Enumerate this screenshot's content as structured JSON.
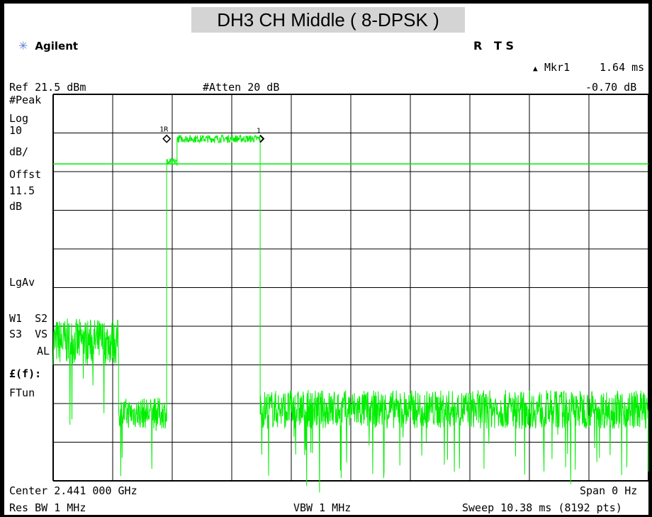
{
  "header": {
    "title": "DH3 CH Middle ( 8-DPSK )",
    "brand": "Agilent",
    "status_flags": "R   T S"
  },
  "readouts": {
    "marker_label": "Mkr1",
    "marker_delta_glyph": "▲",
    "marker_time": "1.64 ms",
    "marker_level": "-0.70 dB",
    "ref_level": "Ref 21.5 dBm",
    "attenuation": "#Atten 20 dB"
  },
  "side_labels": {
    "peak": "#Peak",
    "scale_type": "Log",
    "scale_value": "10",
    "scale_unit": "dB/",
    "offset_label": "Offst",
    "offset_value": "11.5",
    "offset_unit": "dB",
    "averaging": "LgAv",
    "w1s2": "W1  S2",
    "s3vs": "S3  VS",
    "al": "AL",
    "ftun_func": "£(f):",
    "ftun": "FTun"
  },
  "footer": {
    "center": "Center 2.441 000 GHz",
    "span": "Span 0 Hz",
    "res_bw": "Res BW 1 MHz",
    "vbw": "VBW 1 MHz",
    "sweep": "Sweep 10.38 ms (8192 pts)"
  },
  "markers": {
    "ref_label": "1R",
    "marker_label": "1"
  },
  "chart_data": {
    "type": "line",
    "xlim": [
      0,
      10.38
    ],
    "ylim": [
      -78.5,
      21.5
    ],
    "x_unit": "ms",
    "y_unit": "dBm",
    "grid": true,
    "threshold_line_dbm": 3.5,
    "segments": [
      {
        "x": [
          0.0,
          1.14
        ],
        "level_dbm": -42.5,
        "spread_db": 6
      },
      {
        "x": [
          1.14,
          1.98
        ],
        "level_dbm": -61.0,
        "spread_db": 4
      },
      {
        "x": [
          1.98,
          2.16
        ],
        "level_dbm": 4.0,
        "spread_db": 1
      },
      {
        "x": [
          2.16,
          3.61
        ],
        "level_dbm": 10.0,
        "spread_db": 1
      },
      {
        "x": [
          3.61,
          10.38
        ],
        "level_dbm": -60.0,
        "spread_db": 5
      }
    ],
    "marker_ref_x_ms": 1.98,
    "marker_1_x_ms": 3.62,
    "marker_level_dbm": 10.0,
    "colors": {
      "trace": "#00ee00",
      "grid": "#000000",
      "background": "#ffffff"
    }
  }
}
